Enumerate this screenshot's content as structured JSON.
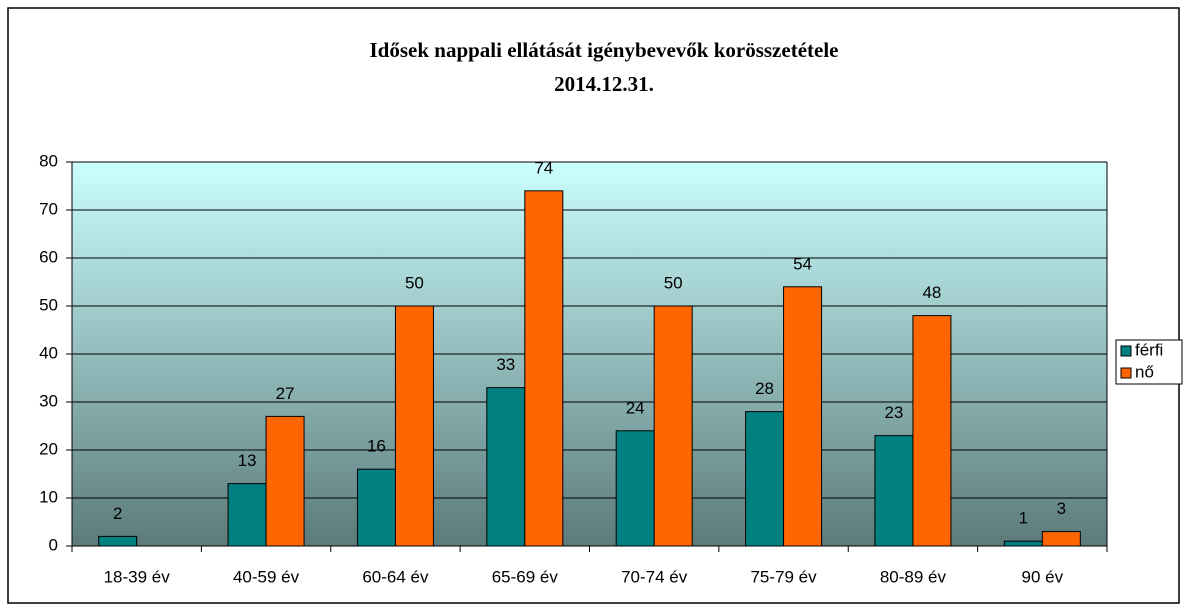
{
  "chart_data": {
    "type": "bar",
    "title": "Idősek nappali ellátását igénybevevők korösszetétele",
    "subtitle": "2014.12.31.",
    "categories": [
      "18-39 év",
      "40-59 év",
      "60-64 év",
      "65-69 év",
      "70-74 év",
      "75-79 év",
      "80-89 év",
      "90 év"
    ],
    "series": [
      {
        "name": "férfi",
        "color": "#008080",
        "values": [
          2,
          13,
          16,
          33,
          24,
          28,
          23,
          1
        ]
      },
      {
        "name": "nő",
        "color": "#ff6600",
        "values": [
          null,
          27,
          50,
          74,
          50,
          54,
          48,
          3
        ]
      }
    ],
    "ylim": [
      0,
      80
    ],
    "yticks": [
      0,
      10,
      20,
      30,
      40,
      50,
      60,
      70,
      80
    ],
    "grid": true,
    "legend": "right"
  }
}
